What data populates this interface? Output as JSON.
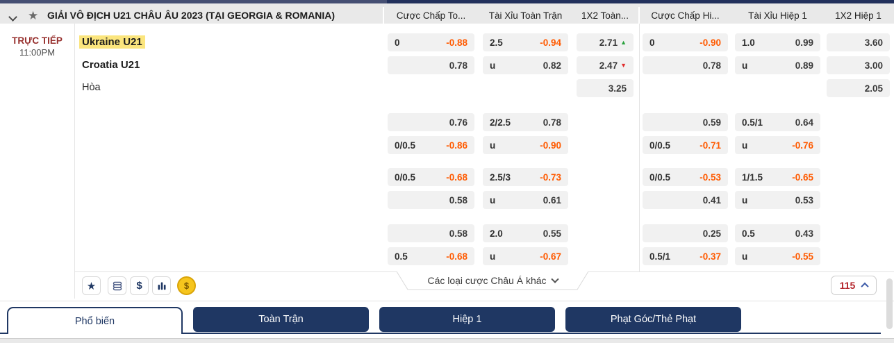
{
  "league_header": {
    "title": "GIẢI VÔ ĐỊCH U21 CHÂU ÂU 2023 (TẠI GEORGIA & ROMANIA)",
    "columns": [
      "Cược Chấp To...",
      "Tài Xỉu Toàn Trận",
      "1X2 Toàn...",
      "Cược Chấp Hi...",
      "Tài Xỉu Hiệp 1",
      "1X2 Hiệp 1"
    ]
  },
  "match": {
    "status": "TRỰC TIẾP",
    "time": "11:00PM",
    "home": "Ukraine U21",
    "away": "Croatia U21",
    "draw_label": "Hòa"
  },
  "odds": {
    "blocks": [
      {
        "ah_ft": [
          {
            "line": "0",
            "odds": "-0.88",
            "neg": true
          },
          {
            "line": "",
            "odds": "0.78"
          }
        ],
        "ou_ft": [
          {
            "line": "2.5",
            "odds": "-0.94",
            "neg": true
          },
          {
            "line": "u",
            "odds": "0.82"
          }
        ],
        "x12_ft": [
          {
            "odds": "2.71",
            "trend": "up"
          },
          {
            "odds": "2.47",
            "trend": "down"
          },
          {
            "odds": "3.25"
          }
        ],
        "ah_h1": [
          {
            "line": "0",
            "odds": "-0.90",
            "neg": true
          },
          {
            "line": "",
            "odds": "0.78"
          }
        ],
        "ou_h1": [
          {
            "line": "1.0",
            "odds": "0.99"
          },
          {
            "line": "u",
            "odds": "0.89"
          }
        ],
        "x12_h1": [
          {
            "odds": "3.60"
          },
          {
            "odds": "3.00"
          },
          {
            "odds": "2.05"
          }
        ]
      },
      {
        "ah_ft": [
          {
            "line": "",
            "odds": "0.76"
          },
          {
            "line": "0/0.5",
            "odds": "-0.86",
            "neg": true
          }
        ],
        "ou_ft": [
          {
            "line": "2/2.5",
            "odds": "0.78"
          },
          {
            "line": "u",
            "odds": "-0.90",
            "neg": true
          }
        ],
        "x12_ft": [],
        "ah_h1": [
          {
            "line": "",
            "odds": "0.59"
          },
          {
            "line": "0/0.5",
            "odds": "-0.71",
            "neg": true
          }
        ],
        "ou_h1": [
          {
            "line": "0.5/1",
            "odds": "0.64"
          },
          {
            "line": "u",
            "odds": "-0.76",
            "neg": true
          }
        ],
        "x12_h1": []
      },
      {
        "ah_ft": [
          {
            "line": "0/0.5",
            "odds": "-0.68",
            "neg": true
          },
          {
            "line": "",
            "odds": "0.58"
          }
        ],
        "ou_ft": [
          {
            "line": "2.5/3",
            "odds": "-0.73",
            "neg": true
          },
          {
            "line": "u",
            "odds": "0.61"
          }
        ],
        "x12_ft": [],
        "ah_h1": [
          {
            "line": "0/0.5",
            "odds": "-0.53",
            "neg": true
          },
          {
            "line": "",
            "odds": "0.41"
          }
        ],
        "ou_h1": [
          {
            "line": "1/1.5",
            "odds": "-0.65",
            "neg": true
          },
          {
            "line": "u",
            "odds": "0.53"
          }
        ],
        "x12_h1": []
      },
      {
        "ah_ft": [
          {
            "line": "",
            "odds": "0.58"
          },
          {
            "line": "0.5",
            "odds": "-0.68",
            "neg": true
          }
        ],
        "ou_ft": [
          {
            "line": "2.0",
            "odds": "0.55"
          },
          {
            "line": "u",
            "odds": "-0.67",
            "neg": true
          }
        ],
        "x12_ft": [],
        "ah_h1": [
          {
            "line": "",
            "odds": "0.25"
          },
          {
            "line": "0.5/1",
            "odds": "-0.37",
            "neg": true
          }
        ],
        "ou_h1": [
          {
            "line": "0.5",
            "odds": "0.43"
          },
          {
            "line": "u",
            "odds": "-0.55",
            "neg": true
          }
        ],
        "x12_h1": []
      }
    ]
  },
  "toolbar": {
    "icons": [
      "star-icon",
      "stack-icon",
      "dollar-icon",
      "bar-chart-icon",
      "coin-dollar-icon"
    ],
    "coin_symbol": "$",
    "dollar_symbol": "$",
    "star_symbol": "★",
    "more_bets_label": "Các loại cược Châu Á khác",
    "market_count": "115"
  },
  "tabs": [
    {
      "label": "Phổ biến",
      "active": true
    },
    {
      "label": "Toàn Trận",
      "active": false
    },
    {
      "label": "Hiệp 1",
      "active": false
    },
    {
      "label": "Phạt Góc/Thẻ Phạt",
      "active": false
    }
  ],
  "colors": {
    "accent_navy": "#1f3763",
    "odds_negative": "#ff5a00",
    "live_red": "#97302e",
    "highlight_yellow": "#fbe57d",
    "trend_up": "#28a13c",
    "trend_down": "#e12d2d"
  }
}
